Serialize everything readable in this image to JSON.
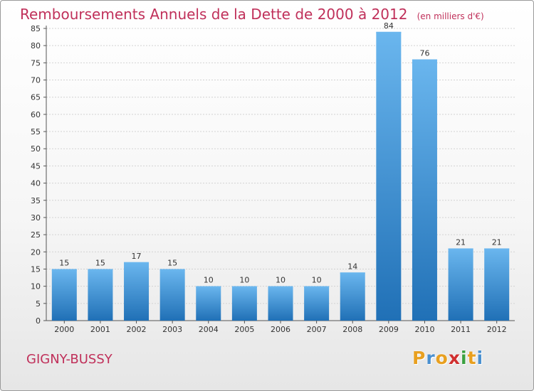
{
  "title": "Remboursements Annuels de la Dette de 2000 à 2012",
  "unit_label": "(en milliers d'€)",
  "commune": "GIGNY-BUSSY",
  "logo": {
    "letters": [
      "P",
      "r",
      "o",
      "x",
      "i",
      "t",
      "i"
    ],
    "colors": [
      "#e8a020",
      "#4a90d0",
      "#e8a020",
      "#d03030",
      "#3aa040",
      "#e8a020",
      "#4a90d0"
    ]
  },
  "colors": {
    "bar": "#3a8fd6",
    "bar_light": "#6ab6ee",
    "bar_dark": "#2070b6",
    "title": "#c0305a"
  },
  "chart_data": {
    "type": "bar",
    "categories": [
      "2000",
      "2001",
      "2002",
      "2003",
      "2004",
      "2005",
      "2006",
      "2007",
      "2008",
      "2009",
      "2010",
      "2011",
      "2012"
    ],
    "values": [
      15,
      15,
      17,
      15,
      10,
      10,
      10,
      10,
      14,
      84,
      76,
      21,
      21
    ],
    "data_labels": [
      "15",
      "15",
      "17",
      "15",
      "10",
      "10",
      "10",
      "10",
      "14",
      "84",
      "76",
      "21",
      "21"
    ],
    "ylim": [
      0,
      85
    ],
    "yticks": [
      "0",
      "5",
      "10",
      "15",
      "20",
      "25",
      "30",
      "35",
      "40",
      "45",
      "50",
      "55",
      "60",
      "65",
      "70",
      "75",
      "80",
      "85"
    ],
    "grid": true,
    "legend": "none"
  }
}
